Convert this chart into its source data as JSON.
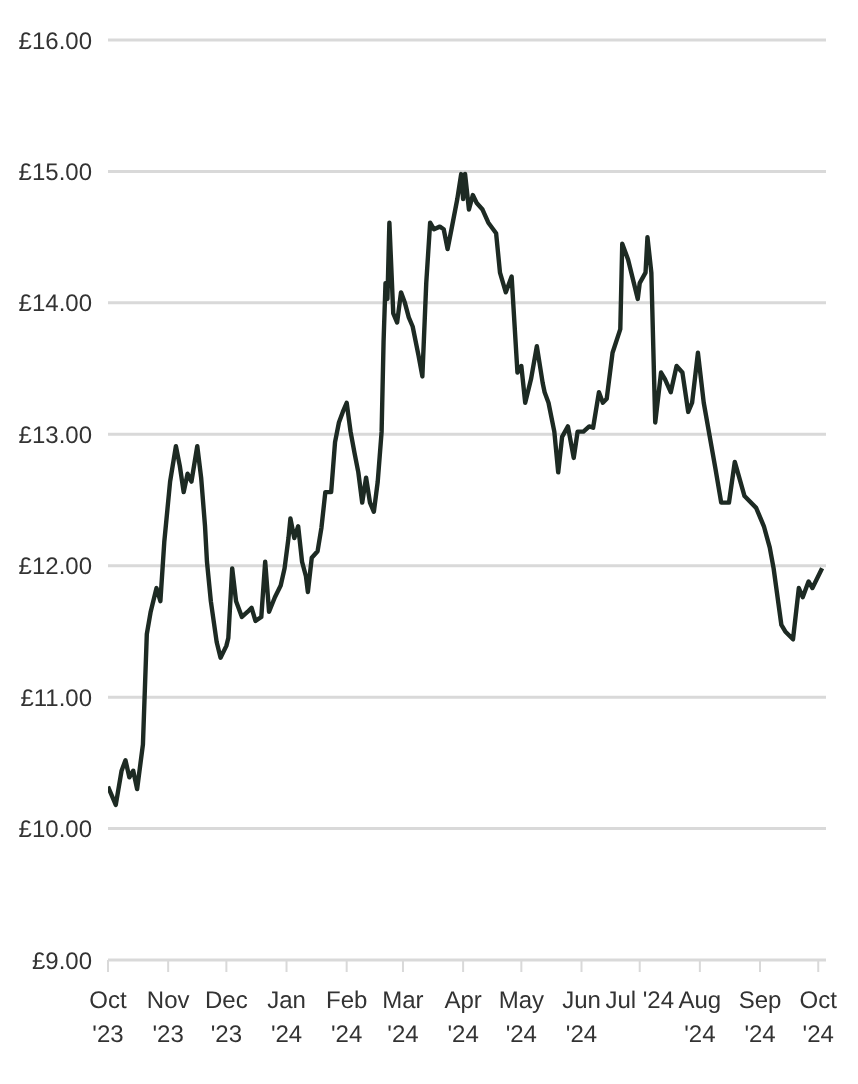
{
  "chart_data": {
    "type": "line",
    "grid": "y",
    "legend": false,
    "marker": "none",
    "line_style": "solid",
    "xlim": [
      "2023-10-01",
      "2024-10-05"
    ],
    "xticks": [
      {
        "value": "2023-10-01",
        "label": "Oct\n'23"
      },
      {
        "value": "2023-11-01",
        "label": "Nov\n'23"
      },
      {
        "value": "2023-12-01",
        "label": "Dec\n'23"
      },
      {
        "value": "2024-01-01",
        "label": "Jan\n'24"
      },
      {
        "value": "2024-02-01",
        "label": "Feb\n'24"
      },
      {
        "value": "2024-03-01",
        "label": "Mar\n'24"
      },
      {
        "value": "2024-04-01",
        "label": "Apr\n'24"
      },
      {
        "value": "2024-05-01",
        "label": "May\n'24"
      },
      {
        "value": "2024-06-01",
        "label": "Jun\n'24"
      },
      {
        "value": "2024-07-01",
        "label": "Jul '24"
      },
      {
        "value": "2024-08-01",
        "label": "Aug\n'24"
      },
      {
        "value": "2024-09-01",
        "label": "Sep\n'24"
      },
      {
        "value": "2024-10-01",
        "label": "Oct\n'24"
      }
    ],
    "ylim": [
      9,
      16
    ],
    "yticks": [
      {
        "value": 9,
        "label": "£9.00"
      },
      {
        "value": 10,
        "label": "£10.00"
      },
      {
        "value": 11,
        "label": "£11.00"
      },
      {
        "value": 12,
        "label": "£12.00"
      },
      {
        "value": 13,
        "label": "£13.00"
      },
      {
        "value": 14,
        "label": "£14.00"
      },
      {
        "value": 15,
        "label": "£15.00"
      },
      {
        "value": 16,
        "label": "£16.00"
      }
    ],
    "series": [
      {
        "color": "#1d2a23",
        "x": [
          "2023-10-01",
          "2023-10-05",
          "2023-10-08",
          "2023-10-10",
          "2023-10-12",
          "2023-10-14",
          "2023-10-16",
          "2023-10-19",
          "2023-10-21",
          "2023-10-23",
          "2023-10-26",
          "2023-10-28",
          "2023-10-30",
          "2023-11-02",
          "2023-11-05",
          "2023-11-07",
          "2023-11-09",
          "2023-11-11",
          "2023-11-13",
          "2023-11-16",
          "2023-11-18",
          "2023-11-20",
          "2023-11-21",
          "2023-11-23",
          "2023-11-26",
          "2023-11-28",
          "2023-12-01",
          "2023-12-02",
          "2023-12-04",
          "2023-12-06",
          "2023-12-09",
          "2023-12-12",
          "2023-12-14",
          "2023-12-16",
          "2023-12-19",
          "2023-12-21",
          "2023-12-23",
          "2023-12-26",
          "2023-12-29",
          "2023-12-31",
          "2024-01-02",
          "2024-01-03",
          "2024-01-05",
          "2024-01-07",
          "2024-01-09",
          "2024-01-11",
          "2024-01-12",
          "2024-01-14",
          "2024-01-17",
          "2024-01-19",
          "2024-01-21",
          "2024-01-24",
          "2024-01-26",
          "2024-01-28",
          "2024-01-30",
          "2024-02-01",
          "2024-02-03",
          "2024-02-05",
          "2024-02-07",
          "2024-02-09",
          "2024-02-11",
          "2024-02-13",
          "2024-02-15",
          "2024-02-17",
          "2024-02-19",
          "2024-02-20",
          "2024-02-21",
          "2024-02-22",
          "2024-02-23",
          "2024-02-25",
          "2024-02-27",
          "2024-02-29",
          "2024-03-02",
          "2024-03-04",
          "2024-03-06",
          "2024-03-09",
          "2024-03-11",
          "2024-03-13",
          "2024-03-15",
          "2024-03-17",
          "2024-03-20",
          "2024-03-22",
          "2024-03-24",
          "2024-03-26",
          "2024-03-29",
          "2024-03-31",
          "2024-04-01",
          "2024-04-02",
          "2024-04-04",
          "2024-04-06",
          "2024-04-08",
          "2024-04-11",
          "2024-04-14",
          "2024-04-18",
          "2024-04-20",
          "2024-04-23",
          "2024-04-26",
          "2024-04-29",
          "2024-05-01",
          "2024-05-03",
          "2024-05-06",
          "2024-05-09",
          "2024-05-12",
          "2024-05-13",
          "2024-05-15",
          "2024-05-18",
          "2024-05-20",
          "2024-05-22",
          "2024-05-25",
          "2024-05-28",
          "2024-05-30",
          "2024-06-02",
          "2024-06-05",
          "2024-06-07",
          "2024-06-10",
          "2024-06-12",
          "2024-06-14",
          "2024-06-17",
          "2024-06-21",
          "2024-06-22",
          "2024-06-25",
          "2024-06-28",
          "2024-06-30",
          "2024-07-01",
          "2024-07-04",
          "2024-07-05",
          "2024-07-07",
          "2024-07-09",
          "2024-07-12",
          "2024-07-14",
          "2024-07-17",
          "2024-07-20",
          "2024-07-23",
          "2024-07-26",
          "2024-07-28",
          "2024-07-31",
          "2024-08-03",
          "2024-08-09",
          "2024-08-12",
          "2024-08-16",
          "2024-08-19",
          "2024-08-24",
          "2024-08-30",
          "2024-09-03",
          "2024-09-06",
          "2024-09-08",
          "2024-09-12",
          "2024-09-14",
          "2024-09-18",
          "2024-09-21",
          "2024-09-23",
          "2024-09-26",
          "2024-09-28",
          "2024-10-03"
        ],
        "values": [
          10.32,
          10.18,
          10.44,
          10.52,
          10.39,
          10.44,
          10.3,
          10.64,
          11.48,
          11.65,
          11.83,
          11.73,
          12.18,
          12.64,
          12.91,
          12.76,
          12.56,
          12.7,
          12.64,
          12.91,
          12.67,
          12.3,
          12.03,
          11.73,
          11.42,
          11.3,
          11.39,
          11.45,
          11.98,
          11.73,
          11.61,
          11.65,
          11.68,
          11.58,
          11.61,
          12.03,
          11.65,
          11.76,
          11.85,
          11.98,
          12.21,
          12.36,
          12.21,
          12.3,
          12.03,
          11.92,
          11.8,
          12.06,
          12.11,
          12.29,
          12.56,
          12.56,
          12.94,
          13.09,
          13.17,
          13.24,
          13.02,
          12.86,
          12.71,
          12.48,
          12.67,
          12.48,
          12.41,
          12.64,
          13.02,
          13.7,
          14.15,
          14.03,
          14.61,
          13.92,
          13.85,
          14.08,
          14.0,
          13.89,
          13.82,
          13.6,
          13.44,
          14.15,
          14.61,
          14.56,
          14.58,
          14.56,
          14.41,
          14.56,
          14.79,
          14.98,
          14.79,
          14.98,
          14.71,
          14.82,
          14.76,
          14.71,
          14.61,
          14.53,
          14.23,
          14.08,
          14.2,
          13.47,
          13.52,
          13.24,
          13.42,
          13.67,
          13.39,
          13.32,
          13.24,
          13.02,
          12.71,
          12.98,
          13.06,
          12.82,
          13.02,
          13.02,
          13.06,
          13.05,
          13.32,
          13.24,
          13.27,
          13.62,
          13.8,
          14.45,
          14.33,
          14.15,
          14.03,
          14.15,
          14.23,
          14.5,
          14.23,
          13.09,
          13.47,
          13.42,
          13.32,
          13.52,
          13.47,
          13.17,
          13.24,
          13.62,
          13.24,
          12.74,
          12.48,
          12.48,
          12.79,
          12.53,
          12.44,
          12.3,
          12.14,
          11.98,
          11.55,
          11.5,
          11.44,
          11.83,
          11.76,
          11.88,
          11.83,
          11.98
        ]
      }
    ]
  }
}
